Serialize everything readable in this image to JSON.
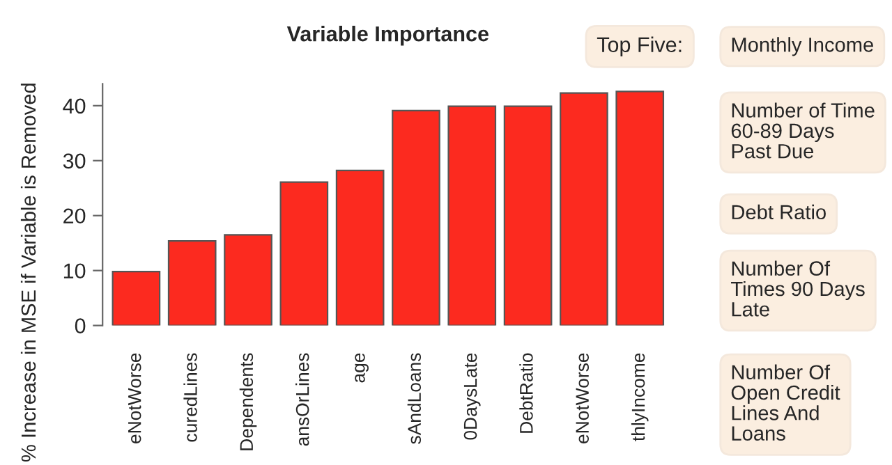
{
  "chart_data": [
    {
      "type": "bar",
      "title": "Variable Importance",
      "ylabel": "% Increase in MSE if Variable is Removed",
      "categories": [
        "eNotWorse",
        "curedLines",
        "Dependents",
        "ansOrLines",
        "age",
        "sAndLoans",
        "0DaysLate",
        "DebtRatio",
        "eNotWorse",
        "thlyIncome"
      ],
      "values": [
        9.8,
        15.4,
        16.5,
        26.1,
        28.2,
        39.1,
        39.9,
        39.9,
        42.3,
        42.6
      ],
      "color": "#fc2a1f",
      "ylim": [
        0,
        44
      ],
      "yticks": [
        0,
        10,
        20,
        30,
        40
      ],
      "grid": false,
      "legend": false
    },
    {
      "type": "other",
      "title": "Top Five:",
      "annotations": [
        "Monthly Income",
        "Number of Time\n60-89 Days\nPast Due",
        "Debt Ratio",
        "Number Of\nTimes 90 Days\nLate",
        "Number Of\nOpen Credit\nLines And\nLoans"
      ]
    }
  ]
}
